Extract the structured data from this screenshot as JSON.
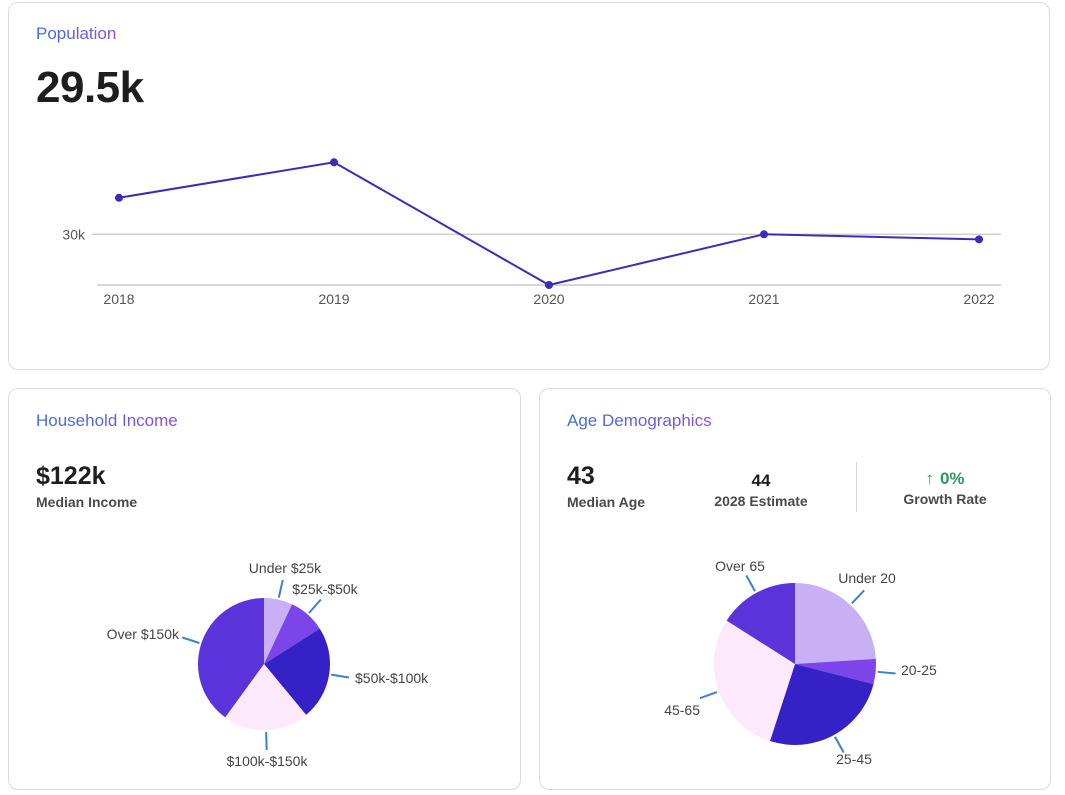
{
  "population": {
    "title": "Population",
    "value": "29.5k"
  },
  "income": {
    "title": "Household Income",
    "value": "$122k",
    "sublabel": "Median Income"
  },
  "age": {
    "title": "Age Demographics",
    "value": "43",
    "sublabel": "Median Age",
    "estimate_value": "44",
    "estimate_label": "2028 Estimate",
    "growth_value": "0%",
    "growth_label": "Growth Rate",
    "growth_color": "#2d9a5a"
  },
  "chart_data": [
    {
      "type": "line",
      "x": [
        "2018",
        "2019",
        "2020",
        "2021",
        "2022"
      ],
      "series": [
        {
          "values": [
            30.36,
            30.71,
            29.5,
            30.0,
            29.95
          ],
          "color": "#3a2db8"
        }
      ],
      "yticks": [
        {
          "value": 30,
          "label": "30k"
        }
      ],
      "ylim": [
        29.5,
        30.9
      ],
      "grid": true
    },
    {
      "type": "pie",
      "labels": [
        "Under $25k",
        "$25k-$50k",
        "$50k-$100k",
        "$100k-$150k",
        "Over $150k"
      ],
      "values": [
        7,
        9,
        23,
        21,
        40
      ],
      "colors": [
        "#c9b0f4",
        "#7b45ea",
        "#3522c6",
        "#fce9fb",
        "#5a33da"
      ]
    },
    {
      "type": "pie",
      "labels": [
        "Under 20",
        "20-25",
        "25-45",
        "45-65",
        "Over 65"
      ],
      "values": [
        24,
        5,
        26,
        29,
        16
      ],
      "colors": [
        "#c9b0f4",
        "#7b45ea",
        "#3522c6",
        "#fce9fb",
        "#5a33da"
      ]
    }
  ]
}
